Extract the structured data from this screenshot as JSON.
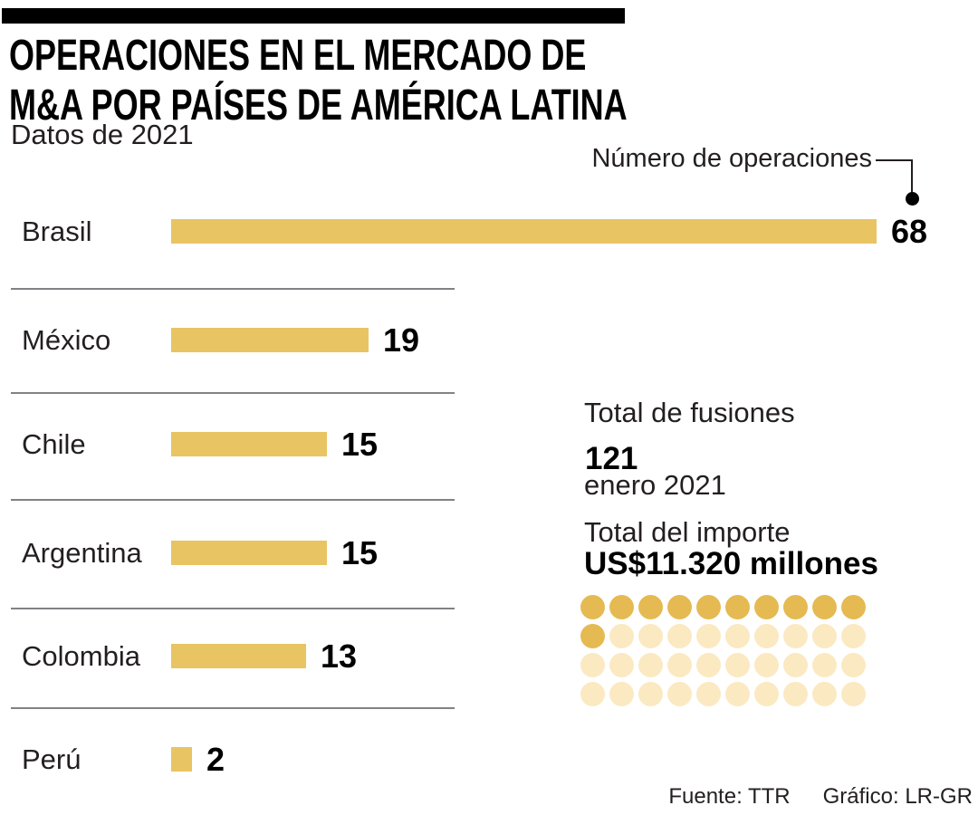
{
  "header": {
    "title_line1": "OPERACIONES EN EL MERCADO DE",
    "title_line2": "M&A POR PAÍSES DE AMÉRICA LATINA",
    "subtitle": "Datos de 2021"
  },
  "chart_data": [
    {
      "type": "bar",
      "orientation": "horizontal",
      "title": "OPERACIONES EN EL MERCADO DE M&A POR PAÍSES DE AMÉRICA LATINA",
      "subtitle": "Datos de 2021",
      "annotation": "Número de operaciones",
      "categories": [
        "Brasil",
        "México",
        "Chile",
        "Argentina",
        "Colombia",
        "Perú"
      ],
      "values": [
        68,
        19,
        15,
        15,
        13,
        2
      ],
      "xlim": [
        0,
        68
      ],
      "grid": false,
      "legend": "none",
      "bar_color": "#e8c463"
    },
    {
      "type": "waffle",
      "title": "Total del importe",
      "value_label": "US$11.320 millones",
      "total_dots": 40,
      "filled_dots": 11,
      "columns": 10,
      "filled_color": "#e5ba52",
      "empty_color": "#fbe9c2"
    }
  ],
  "stats": {
    "fusiones": {
      "label_line1": "Total de fusiones",
      "label_line2": "enero 2021",
      "value": "121"
    },
    "importe": {
      "label": "Total del importe",
      "value": "US$11.320 millones"
    }
  },
  "footer": {
    "source": "Fuente: TTR",
    "credit": "Gráfico: LR-GR"
  },
  "colors": {
    "bar_gold": "#e8c463",
    "dot_filled": "#e5ba52",
    "dot_empty": "#fbe9c2",
    "separator": "#808285",
    "text": "#231f20",
    "top_bar": "#000000"
  }
}
